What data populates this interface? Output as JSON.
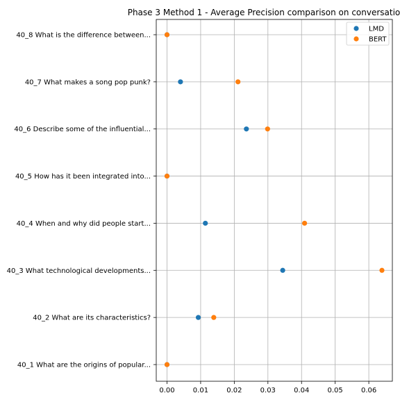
{
  "chart_data": {
    "type": "scatter",
    "title": "Phase 3 Method 1 - Average Precision comparison on conversatio",
    "xlabel": "",
    "ylabel": "",
    "categories": [
      "40_1 What are the origins of popular...",
      "40_2 What are its characteristics?",
      "40_3 What technological developments...",
      "40_4 When and why did people start...",
      "40_5 How has it been integrated into...",
      "40_6 Describe some of the influential...",
      "40_7 What makes a song pop punk?",
      "40_8 What is the difference between..."
    ],
    "series": [
      {
        "name": "LMD",
        "color": "#1f77b4",
        "values": [
          0.0,
          0.0093,
          0.0344,
          0.0114,
          0.0,
          0.0236,
          0.004,
          0.0
        ]
      },
      {
        "name": "BERT",
        "color": "#ff7f0e",
        "values": [
          0.0,
          0.0139,
          0.0639,
          0.0409,
          0.0,
          0.0299,
          0.0211,
          0.0
        ]
      }
    ],
    "xlim": [
      -0.0032,
      0.067
    ],
    "x_ticks": [
      0.0,
      0.01,
      0.02,
      0.03,
      0.04,
      0.05,
      0.06
    ],
    "x_tick_labels": [
      "0.00",
      "0.01",
      "0.02",
      "0.03",
      "0.04",
      "0.05",
      "0.06"
    ],
    "grid": true,
    "legend_position": "top-right"
  }
}
